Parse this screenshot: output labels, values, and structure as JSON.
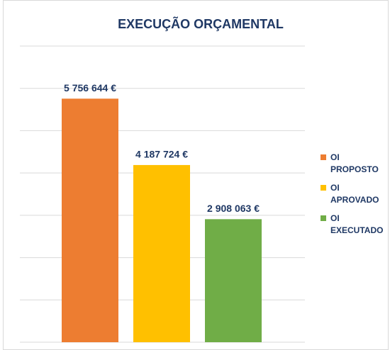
{
  "chart_data": {
    "type": "bar",
    "title": "EXECUÇÃO ORÇAMENTAL",
    "categories": [
      "OI PROPOSTO",
      "OI APROVADO",
      "OI EXECUTADO"
    ],
    "values": [
      5756644,
      4187724,
      2908063
    ],
    "value_labels": [
      "5 756 644 €",
      "4 187 724 €",
      "2 908 063 €"
    ],
    "colors": [
      "#ed7d31",
      "#ffc000",
      "#70ad47"
    ],
    "ylim": [
      0,
      7000000
    ],
    "yticks": [
      0,
      1000000,
      2000000,
      3000000,
      4000000,
      5000000,
      6000000,
      7000000
    ],
    "grid": true,
    "legend": "right"
  }
}
